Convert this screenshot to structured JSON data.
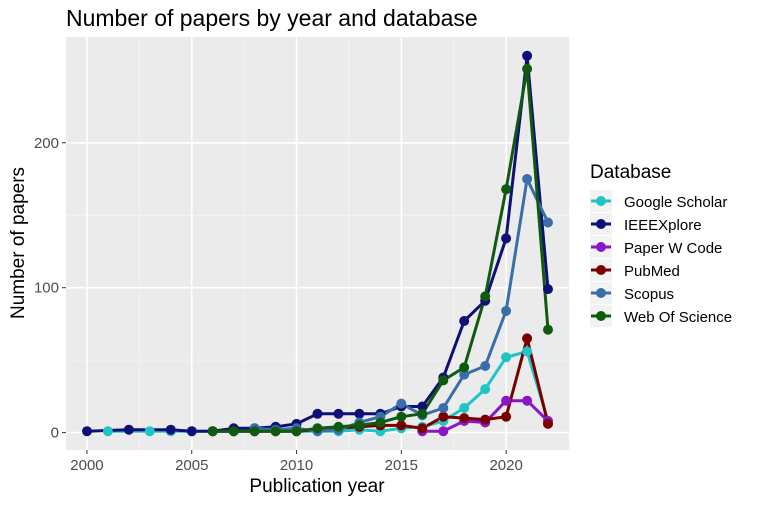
{
  "chart_data": {
    "type": "line",
    "title": "Number of papers by year and database",
    "xlabel": "Publication year",
    "ylabel": "Number of papers",
    "xlim": [
      1999,
      2023
    ],
    "ylim": [
      -12,
      273
    ],
    "x_ticks": [
      2000,
      2005,
      2010,
      2015,
      2020
    ],
    "y_ticks": [
      0,
      100,
      200
    ],
    "grid": true,
    "legend": {
      "title": "Database",
      "position": "right"
    },
    "series": [
      {
        "name": "Google Scholar",
        "color": "#20c4c4",
        "x": [
          2001,
          2003,
          2004,
          2005,
          2006,
          2007,
          2008,
          2009,
          2010,
          2011,
          2012,
          2013,
          2014,
          2015,
          2016,
          2017,
          2018,
          2019,
          2020,
          2021,
          2022
        ],
        "y": [
          1,
          1,
          1,
          1,
          1,
          1,
          1,
          1,
          1,
          1,
          1,
          2,
          1,
          3,
          4,
          8,
          17,
          30,
          52,
          56,
          8
        ]
      },
      {
        "name": "IEEEXplore",
        "color": "#0f0f78",
        "x": [
          2000,
          2002,
          2004,
          2005,
          2006,
          2007,
          2008,
          2009,
          2010,
          2011,
          2012,
          2013,
          2014,
          2015,
          2016,
          2017,
          2018,
          2019,
          2020,
          2021,
          2022
        ],
        "y": [
          1,
          2,
          2,
          1,
          1,
          3,
          3,
          4,
          6,
          13,
          13,
          13,
          13,
          18,
          18,
          38,
          77,
          91,
          134,
          260,
          99
        ]
      },
      {
        "name": "Paper W Code",
        "color": "#8a16c6",
        "x": [
          2016,
          2017,
          2018,
          2019,
          2020,
          2021,
          2022
        ],
        "y": [
          1,
          1,
          8,
          7,
          22,
          22,
          8
        ]
      },
      {
        "name": "PubMed",
        "color": "#7a0000",
        "x": [
          2006,
          2007,
          2008,
          2009,
          2010,
          2011,
          2012,
          2013,
          2014,
          2015,
          2016,
          2017,
          2018,
          2019,
          2020,
          2021,
          2022
        ],
        "y": [
          1,
          1,
          1,
          1,
          1,
          2,
          3,
          4,
          5,
          5,
          3,
          11,
          10,
          9,
          11,
          65,
          6
        ]
      },
      {
        "name": "Scopus",
        "color": "#3a6ea8",
        "x": [
          2008,
          2009,
          2010,
          2011,
          2012,
          2013,
          2014,
          2015,
          2016,
          2017,
          2018,
          2019,
          2020,
          2021,
          2022
        ],
        "y": [
          3,
          2,
          3,
          1,
          2,
          7,
          11,
          20,
          12,
          17,
          40,
          46,
          84,
          175,
          145
        ]
      },
      {
        "name": "Web Of Science",
        "color": "#0f5a0f",
        "x": [
          2006,
          2007,
          2008,
          2009,
          2010,
          2011,
          2012,
          2013,
          2014,
          2015,
          2016,
          2017,
          2018,
          2019,
          2020,
          2021,
          2022
        ],
        "y": [
          1,
          1,
          1,
          1,
          1,
          3,
          4,
          5,
          7,
          11,
          13,
          36,
          45,
          94,
          168,
          251,
          71
        ]
      }
    ]
  }
}
